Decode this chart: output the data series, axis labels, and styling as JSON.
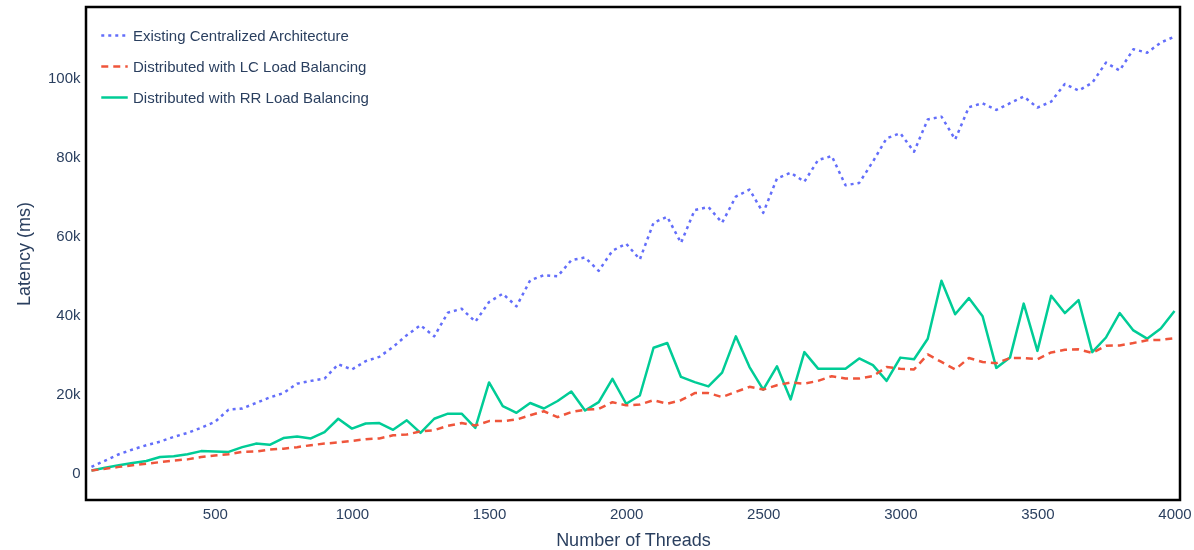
{
  "chart_data": {
    "type": "line",
    "xlabel": "Number of Threads",
    "ylabel": "Latency (ms)",
    "x": [
      50,
      100,
      150,
      200,
      250,
      300,
      350,
      400,
      450,
      500,
      550,
      600,
      650,
      700,
      750,
      800,
      850,
      900,
      950,
      1000,
      1050,
      1100,
      1150,
      1200,
      1250,
      1300,
      1350,
      1400,
      1450,
      1500,
      1550,
      1600,
      1650,
      1700,
      1750,
      1800,
      1850,
      1900,
      1950,
      2000,
      2050,
      2100,
      2150,
      2200,
      2250,
      2300,
      2350,
      2400,
      2450,
      2500,
      2550,
      2600,
      2650,
      2700,
      2750,
      2800,
      2850,
      2900,
      2950,
      3000,
      3050,
      3100,
      3150,
      3200,
      3250,
      3300,
      3350,
      3400,
      3450,
      3500,
      3550,
      3600,
      3650,
      3700,
      3750,
      3800,
      3850,
      3900,
      3950,
      4000
    ],
    "series": [
      {
        "name": "Existing Centralized Architecture",
        "color": "#636efa",
        "line_style": "dotted",
        "values": [
          1400,
          3000,
          4600,
          5800,
          6900,
          7800,
          9000,
          10000,
          11300,
          12800,
          15900,
          16200,
          17600,
          19000,
          20100,
          22500,
          23200,
          23800,
          27400,
          26100,
          28200,
          29300,
          31800,
          34800,
          37300,
          34500,
          40500,
          41500,
          38200,
          43200,
          45300,
          42100,
          48700,
          50000,
          49700,
          53800,
          54500,
          51100,
          56200,
          58000,
          54000,
          63300,
          64800,
          58200,
          66500,
          67300,
          63300,
          69900,
          71700,
          65800,
          74500,
          76000,
          73700,
          79200,
          80200,
          72800,
          73400,
          78800,
          84700,
          86000,
          81300,
          89500,
          90200,
          84400,
          92600,
          93600,
          91900,
          93600,
          95300,
          92500,
          94000,
          98500,
          96800,
          98800,
          103900,
          101900,
          107300,
          106400,
          109000,
          110500
        ]
      },
      {
        "name": "Distributed with LC Load Balancing",
        "color": "#ef553b",
        "line_style": "dashed",
        "values": [
          500,
          900,
          1400,
          1800,
          2200,
          2600,
          3000,
          3300,
          3900,
          4300,
          4600,
          5200,
          5300,
          5800,
          6000,
          6400,
          6900,
          7300,
          7600,
          8000,
          8400,
          8600,
          9400,
          9600,
          10400,
          10700,
          11800,
          12500,
          11900,
          13000,
          13000,
          13400,
          14500,
          15500,
          14000,
          15300,
          15900,
          16100,
          17800,
          17000,
          17200,
          18300,
          17400,
          18300,
          20100,
          20100,
          19100,
          20400,
          21700,
          21000,
          22100,
          22800,
          22500,
          23200,
          24400,
          23800,
          23800,
          24400,
          26700,
          26300,
          26100,
          29900,
          28000,
          26100,
          29000,
          28000,
          27700,
          29000,
          29000,
          28700,
          30400,
          31100,
          31200,
          30300,
          32100,
          32200,
          32800,
          33500,
          33600,
          34000
        ]
      },
      {
        "name": "Distributed with RR Load Balancing",
        "color": "#00cc96",
        "line_style": "solid",
        "values": [
          500,
          1200,
          1800,
          2400,
          2900,
          3900,
          4100,
          4600,
          5400,
          5300,
          5200,
          6400,
          7300,
          7000,
          8700,
          9100,
          8600,
          10200,
          13600,
          11100,
          12400,
          12500,
          10800,
          13200,
          10000,
          13600,
          14900,
          14900,
          11300,
          22800,
          16800,
          15100,
          17600,
          16200,
          18100,
          20500,
          15700,
          17800,
          23700,
          17400,
          19500,
          31600,
          32800,
          24200,
          22900,
          21800,
          25300,
          34500,
          26700,
          21000,
          26900,
          18500,
          30500,
          26300,
          26300,
          26300,
          28900,
          27200,
          23200,
          29100,
          28700,
          33900,
          48600,
          40100,
          44200,
          39600,
          26500,
          29100,
          42800,
          30800,
          44800,
          40400,
          43700,
          30500,
          34200,
          40400,
          36000,
          33900,
          36500,
          40900
        ]
      }
    ],
    "xlim": [
      30,
      4020
    ],
    "ylim": [
      -7000,
      118000
    ],
    "xticks": [
      500,
      1000,
      1500,
      2000,
      2500,
      3000,
      3500,
      4000
    ],
    "yticks": [
      0,
      {
        "value": 20000,
        "label": "20k"
      },
      {
        "value": 40000,
        "label": "40k"
      },
      {
        "value": 60000,
        "label": "60k"
      },
      {
        "value": 80000,
        "label": "80k"
      },
      {
        "value": 100000,
        "label": "100k"
      }
    ],
    "grid": false,
    "legend": "top left",
    "marker": "none"
  }
}
